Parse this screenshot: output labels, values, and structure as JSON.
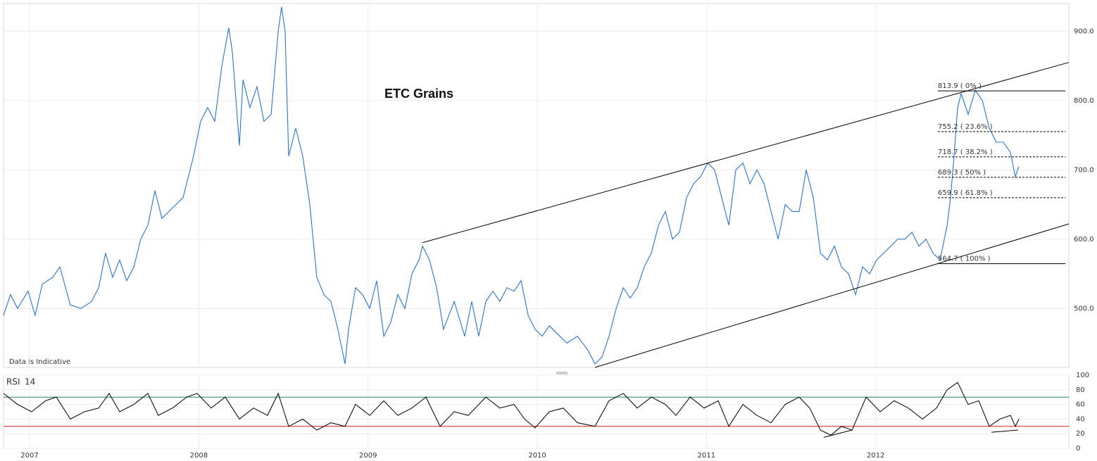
{
  "chart_data": [
    {
      "type": "line",
      "title": "ETC Grains",
      "annotation": "Data is Indicative",
      "color": "#2b74cc",
      "x": [
        2006.846,
        2006.887,
        2006.929,
        2006.991,
        2007.033,
        2007.075,
        2007.137,
        2007.179,
        2007.241,
        2007.304,
        2007.366,
        2007.408,
        2007.449,
        2007.491,
        2007.532,
        2007.574,
        2007.616,
        2007.657,
        2007.699,
        2007.741,
        2007.782,
        2007.844,
        2007.907,
        2007.969,
        2008.011,
        2008.052,
        2008.094,
        2008.136,
        2008.177,
        2008.198,
        2008.24,
        2008.261,
        2008.302,
        2008.344,
        2008.385,
        2008.427,
        2008.469,
        2008.489,
        2008.51,
        2008.531,
        2008.573,
        2008.614,
        2008.656,
        2008.697,
        2008.739,
        2008.781,
        2008.822,
        2008.864,
        2008.885,
        2008.926,
        2008.968,
        2009.01,
        2009.051,
        2009.093,
        2009.134,
        2009.176,
        2009.218,
        2009.259,
        2009.301,
        2009.322,
        2009.363,
        2009.405,
        2009.446,
        2009.509,
        2009.571,
        2009.613,
        2009.654,
        2009.696,
        2009.738,
        2009.779,
        2009.821,
        2009.863,
        2009.904,
        2009.946,
        2009.987,
        2010.029,
        2010.071,
        2010.133,
        2010.175,
        2010.237,
        2010.299,
        2010.341,
        2010.383,
        2010.424,
        2010.466,
        2010.508,
        2010.549,
        2010.591,
        2010.632,
        2010.674,
        2010.716,
        2010.757,
        2010.799,
        2010.84,
        2010.882,
        2010.924,
        2010.965,
        2011.007,
        2011.048,
        2011.09,
        2011.132,
        2011.173,
        2011.215,
        2011.257,
        2011.298,
        2011.34,
        2011.381,
        2011.423,
        2011.465,
        2011.506,
        2011.548,
        2011.589,
        2011.631,
        2011.673,
        2011.714,
        2011.756,
        2011.797,
        2011.839,
        2011.881,
        2011.922,
        2011.964,
        2012.005,
        2012.047,
        2012.089,
        2012.13,
        2012.172,
        2012.214,
        2012.255,
        2012.297,
        2012.338,
        2012.38,
        2012.422,
        2012.442,
        2012.463,
        2012.484,
        2012.505,
        2012.546,
        2012.588,
        2012.63,
        2012.671,
        2012.713,
        2012.754,
        2012.796,
        2012.825,
        2012.846
      ],
      "values": [
        490,
        520,
        500,
        525,
        490,
        535,
        545,
        560,
        505,
        500,
        510,
        530,
        580,
        545,
        570,
        540,
        560,
        600,
        620,
        670,
        630,
        645,
        660,
        720,
        770,
        790,
        770,
        850,
        905,
        870,
        735,
        830,
        790,
        820,
        770,
        780,
        900,
        935,
        900,
        720,
        760,
        720,
        650,
        545,
        520,
        510,
        470,
        420,
        470,
        530,
        520,
        500,
        540,
        460,
        480,
        520,
        500,
        550,
        570,
        590,
        570,
        530,
        470,
        510,
        460,
        510,
        460,
        510,
        525,
        510,
        530,
        525,
        540,
        490,
        470,
        460,
        475,
        460,
        450,
        460,
        440,
        420,
        430,
        460,
        500,
        530,
        515,
        530,
        560,
        580,
        620,
        640,
        600,
        610,
        660,
        680,
        690,
        710,
        700,
        660,
        620,
        700,
        710,
        680,
        700,
        680,
        640,
        600,
        650,
        640,
        640,
        700,
        660,
        580,
        570,
        590,
        560,
        550,
        520,
        560,
        550,
        570,
        580,
        590,
        600,
        600,
        610,
        590,
        600,
        580,
        570,
        620,
        660,
        720,
        790,
        810,
        780,
        815,
        800,
        760,
        740,
        740,
        725,
        690,
        705
      ],
      "xlim": [
        2006.846,
        2013.141
      ],
      "ylim": [
        415,
        940
      ],
      "xticks": [
        2007,
        2008,
        2009,
        2010,
        2011,
        2012
      ],
      "yticks": [
        {
          "value": 500,
          "label": "500.0"
        },
        {
          "value": 600,
          "label": "600.0"
        },
        {
          "value": 700,
          "label": "700.0"
        },
        {
          "value": 800,
          "label": "800.0"
        },
        {
          "value": 900,
          "label": "900.0"
        }
      ],
      "grid": true,
      "trendlines": [
        {
          "x": [
            2009.322,
            2013.141
          ],
          "y": [
            595,
            855
          ]
        },
        {
          "x": [
            2010.341,
            2013.141
          ],
          "y": [
            415,
            622
          ]
        }
      ],
      "fibonacci": {
        "x": [
          2012.367,
          2013.121
        ],
        "levels": [
          {
            "value": 813.9,
            "label": "813.9 ( 0% )",
            "dashed": false
          },
          {
            "value": 755.2,
            "label": "755.2 ( 23.6% )",
            "dashed": true
          },
          {
            "value": 718.7,
            "label": "718.7 ( 38.2% )",
            "dashed": true
          },
          {
            "value": 689.3,
            "label": "689.3 ( 50% )",
            "dashed": true
          },
          {
            "value": 659.9,
            "label": "659.9 ( 61.8% )",
            "dashed": true
          },
          {
            "value": 564.7,
            "label": "564.7 ( 100% )",
            "dashed": false
          }
        ]
      }
    },
    {
      "type": "line",
      "title": "RSI",
      "period": 14,
      "color": "#111111",
      "x": [
        2006.846,
        2006.929,
        2007.012,
        2007.095,
        2007.158,
        2007.241,
        2007.324,
        2007.408,
        2007.47,
        2007.532,
        2007.616,
        2007.699,
        2007.761,
        2007.844,
        2007.928,
        2007.99,
        2008.073,
        2008.156,
        2008.24,
        2008.323,
        2008.406,
        2008.469,
        2008.531,
        2008.614,
        2008.697,
        2008.781,
        2008.864,
        2008.926,
        2009.01,
        2009.093,
        2009.176,
        2009.259,
        2009.342,
        2009.426,
        2009.509,
        2009.592,
        2009.696,
        2009.779,
        2009.863,
        2009.925,
        2009.987,
        2010.071,
        2010.154,
        2010.237,
        2010.341,
        2010.424,
        2010.508,
        2010.591,
        2010.674,
        2010.757,
        2010.82,
        2010.903,
        2010.986,
        2011.069,
        2011.132,
        2011.215,
        2011.298,
        2011.381,
        2011.465,
        2011.548,
        2011.61,
        2011.673,
        2011.735,
        2011.797,
        2011.86,
        2011.943,
        2012.026,
        2012.109,
        2012.193,
        2012.276,
        2012.359,
        2012.422,
        2012.484,
        2012.546,
        2012.609,
        2012.671,
        2012.734,
        2012.796,
        2012.825,
        2012.846
      ],
      "values": [
        75,
        60,
        50,
        65,
        70,
        40,
        50,
        55,
        75,
        50,
        60,
        75,
        45,
        55,
        70,
        75,
        55,
        70,
        40,
        55,
        45,
        75,
        30,
        40,
        25,
        35,
        30,
        60,
        45,
        65,
        45,
        55,
        70,
        30,
        50,
        45,
        70,
        55,
        60,
        40,
        28,
        50,
        55,
        35,
        30,
        65,
        75,
        55,
        70,
        60,
        45,
        70,
        55,
        65,
        30,
        60,
        45,
        35,
        60,
        70,
        55,
        25,
        18,
        30,
        25,
        70,
        50,
        65,
        55,
        40,
        55,
        80,
        90,
        60,
        65,
        30,
        40,
        45,
        30,
        40
      ],
      "xlim": [
        2006.846,
        2013.141
      ],
      "ylim": [
        0,
        100
      ],
      "xticks": [
        2007,
        2008,
        2009,
        2010,
        2011,
        2012
      ],
      "yticks": [
        0,
        20,
        40,
        60,
        80,
        100
      ],
      "grid": true,
      "levels": [
        {
          "value": 70,
          "color": "#2e7d5b"
        },
        {
          "value": 30,
          "color": "#d62020"
        }
      ],
      "trendlines": [
        {
          "x": [
            2011.693,
            2011.86
          ],
          "y": [
            15,
            25
          ]
        },
        {
          "x": [
            2012.684,
            2012.84
          ],
          "y": [
            22,
            25
          ]
        }
      ]
    }
  ]
}
